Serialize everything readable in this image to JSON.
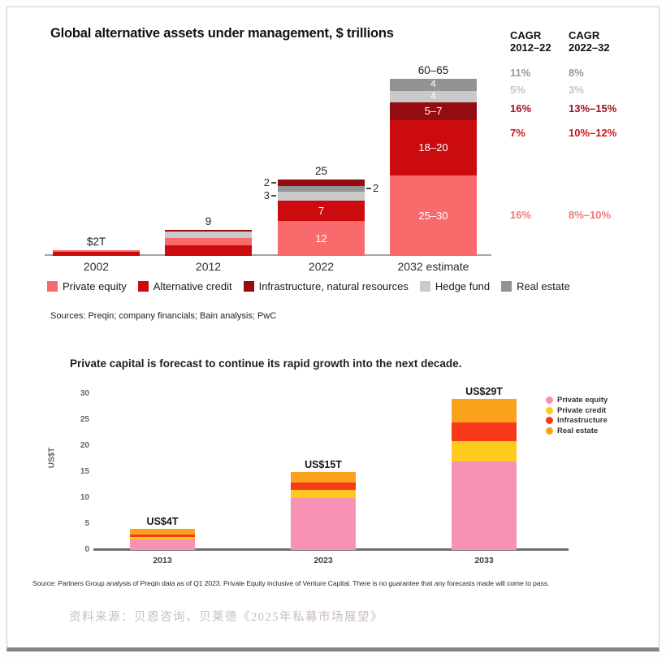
{
  "page": {
    "footer_source_zh": "资料来源：贝恩咨询、贝莱德《2025年私募市场展望》"
  },
  "top_chart": {
    "title": "Global alternative assets under management, $ trillions",
    "sources_note": "Sources: Preqin; company financials; Bain analysis; PwC",
    "legend": [
      {
        "label": "Private equity",
        "color": "#F96A6C"
      },
      {
        "label": "Alternative credit",
        "color": "#CB0B0E"
      },
      {
        "label": "Infrastructure, natural resources",
        "color": "#930C10"
      },
      {
        "label": "Hedge fund",
        "color": "#C9C9C9"
      },
      {
        "label": "Real estate",
        "color": "#939393"
      }
    ],
    "cagr_table": {
      "columns": [
        {
          "title_line1": "CAGR",
          "title_line2": "2012–22"
        },
        {
          "title_line1": "CAGR",
          "title_line2": "2022–32"
        }
      ],
      "rows": [
        {
          "segment": "Real estate",
          "cagr_2012_22": "11%",
          "cagr_2022_32": "8%",
          "color": "#9A9A9A"
        },
        {
          "segment": "Hedge fund",
          "cagr_2012_22": "5%",
          "cagr_2022_32": "3%",
          "color": "#C5C5C5"
        },
        {
          "segment": "Infrastructure, natural resources",
          "cagr_2012_22": "16%",
          "cagr_2022_32": "13%–15%",
          "color": "#9B1118"
        },
        {
          "segment": "Alternative credit",
          "cagr_2012_22": "7%",
          "cagr_2022_32": "10%–12%",
          "color": "#D21317"
        },
        {
          "segment": "Private equity",
          "cagr_2012_22": "16%",
          "cagr_2022_32": "8%–10%",
          "color": "#F7787B"
        }
      ]
    }
  },
  "bottom_chart": {
    "title": "Private capital is forecast to continue its rapid growth into the next decade.",
    "ylabel": "US$T",
    "legend": [
      {
        "label": "Private equity",
        "color": "#F792B3"
      },
      {
        "label": "Private credit",
        "color": "#FFCA1E"
      },
      {
        "label": "Infrastructure",
        "color": "#F83A1B"
      },
      {
        "label": "Real estate",
        "color": "#FAA21B"
      }
    ],
    "source_note": "Source: Partners Group analysis of Preqin data as of Q1 2023. Private Equity inclusive of Venture Capital. There is no guarantee that any forecasts made will come to pass."
  },
  "chart_data": [
    {
      "type": "bar",
      "stacked": true,
      "title": "Global alternative assets under management, $ trillions",
      "unit": "$ trillions",
      "categories": [
        "2002",
        "2012",
        "2022",
        "2032 estimate"
      ],
      "bars": [
        {
          "category": "2002",
          "total_label": "$2T",
          "total": 2,
          "segments": [
            {
              "name": "Alternative credit",
              "value": 1.4,
              "color": "#CB0B0E"
            },
            {
              "name": "Private equity",
              "value": 0.6,
              "color": "#F96A6C"
            }
          ]
        },
        {
          "category": "2012",
          "total_label": "9",
          "total": 9,
          "segments": [
            {
              "name": "Alternative credit",
              "value": 3.5,
              "color": "#CB0B0E"
            },
            {
              "name": "Private equity",
              "value": 2.5,
              "color": "#F96A6C"
            },
            {
              "name": "Hedge fund",
              "value": 2.2,
              "color": "#C9C9C9"
            },
            {
              "name": "Infrastructure, natural resources",
              "value": 0.8,
              "color": "#930C10"
            }
          ]
        },
        {
          "category": "2022",
          "total_label": "25",
          "total": 25,
          "segments": [
            {
              "name": "Private equity",
              "value": 12,
              "color": "#F96A6C",
              "label": "12",
              "label_pos": "inside"
            },
            {
              "name": "Alternative credit",
              "value": 7,
              "color": "#CB0B0E",
              "label": "7",
              "label_pos": "inside"
            },
            {
              "name": "Hedge fund",
              "value": 3,
              "color": "#C9C9C9",
              "label": "3",
              "label_pos": "left"
            },
            {
              "name": "Real estate",
              "value": 2,
              "color": "#939393",
              "label": "2",
              "label_pos": "right"
            },
            {
              "name": "Infrastructure, natural resources",
              "value": 2,
              "color": "#930C10",
              "label": "2",
              "label_pos": "left"
            }
          ]
        },
        {
          "category": "2032 estimate",
          "total_label": "60–65",
          "total": 60.5,
          "segments": [
            {
              "name": "Private equity",
              "value": 27.5,
              "color": "#F96A6C",
              "label": "25–30",
              "label_pos": "inside"
            },
            {
              "name": "Alternative credit",
              "value": 19,
              "color": "#CB0B0E",
              "label": "18–20",
              "label_pos": "inside"
            },
            {
              "name": "Infrastructure, natural resources",
              "value": 6,
              "color": "#930C10",
              "label": "5–7",
              "label_pos": "inside"
            },
            {
              "name": "Hedge fund",
              "value": 4,
              "color": "#C9C9C9",
              "label": "4",
              "label_pos": "inside"
            },
            {
              "name": "Real estate",
              "value": 4,
              "color": "#939393",
              "label": "4",
              "label_pos": "inside"
            }
          ]
        }
      ]
    },
    {
      "type": "bar",
      "stacked": true,
      "title": "Private capital is forecast to continue its rapid growth into the next decade.",
      "ylabel": "US$T",
      "ylim": [
        0,
        30
      ],
      "yticks": [
        0,
        5,
        10,
        15,
        20,
        25,
        30
      ],
      "categories": [
        "2013",
        "2023",
        "2033"
      ],
      "bars": [
        {
          "category": "2013",
          "total_label": "US$4T",
          "total": 4,
          "segments": [
            {
              "name": "Private equity",
              "value": 2,
              "color": "#F792B3"
            },
            {
              "name": "Private credit",
              "value": 0.5,
              "color": "#FFCA1E"
            },
            {
              "name": "Infrastructure",
              "value": 0.5,
              "color": "#F83A1B"
            },
            {
              "name": "Real estate",
              "value": 1,
              "color": "#FAA21B"
            }
          ]
        },
        {
          "category": "2023",
          "total_label": "US$15T",
          "total": 15,
          "segments": [
            {
              "name": "Private equity",
              "value": 10,
              "color": "#F792B3"
            },
            {
              "name": "Private credit",
              "value": 1.5,
              "color": "#FFCA1E"
            },
            {
              "name": "Infrastructure",
              "value": 1.5,
              "color": "#F83A1B"
            },
            {
              "name": "Real estate",
              "value": 2,
              "color": "#FAA21B"
            }
          ]
        },
        {
          "category": "2033",
          "total_label": "US$29T",
          "total": 29,
          "segments": [
            {
              "name": "Private equity",
              "value": 17,
              "color": "#F792B3"
            },
            {
              "name": "Private credit",
              "value": 4,
              "color": "#FFCA1E"
            },
            {
              "name": "Infrastructure",
              "value": 3.5,
              "color": "#F83A1B"
            },
            {
              "name": "Real estate",
              "value": 4.5,
              "color": "#FAA21B"
            }
          ]
        }
      ]
    }
  ]
}
